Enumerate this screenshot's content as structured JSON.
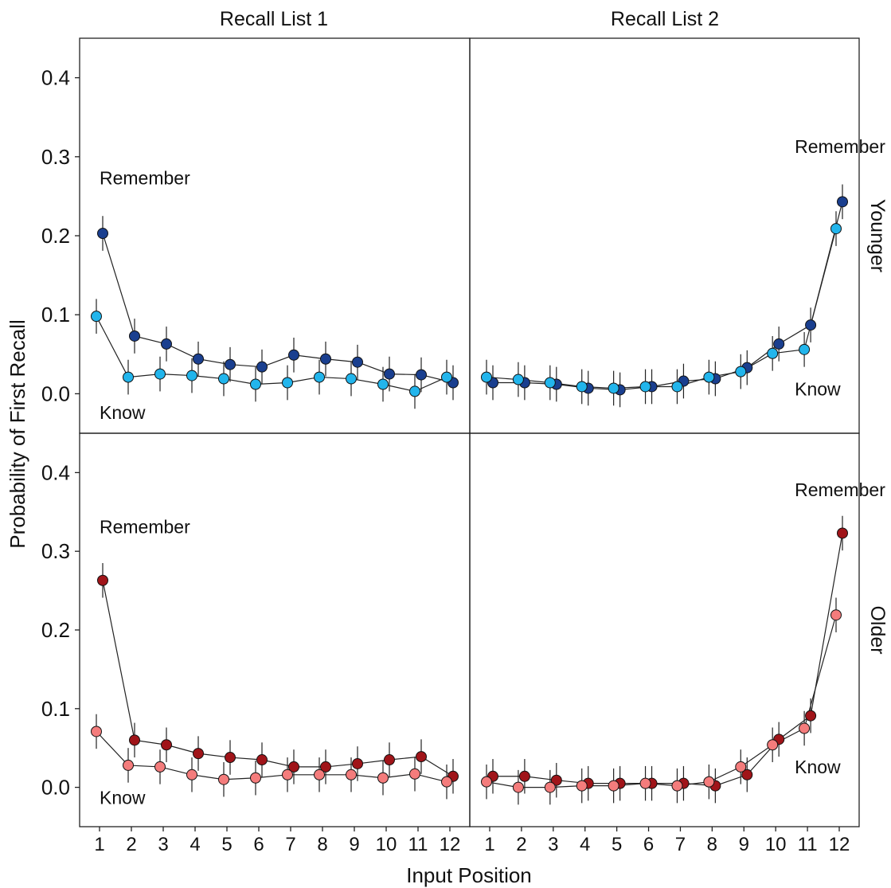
{
  "chart_data": {
    "type": "line",
    "xlabel": "Input Position",
    "ylabel": "Probability of First Recall",
    "x": [
      1,
      2,
      3,
      4,
      5,
      6,
      7,
      8,
      9,
      10,
      11,
      12
    ],
    "x_ticks": [
      "1",
      "2",
      "3",
      "4",
      "5",
      "6",
      "7",
      "8",
      "9",
      "10",
      "11",
      "12"
    ],
    "ylim": [
      -0.05,
      0.45
    ],
    "y_ticks": [
      "0.0",
      "0.1",
      "0.2",
      "0.3",
      "0.4"
    ],
    "y_tick_values": [
      0,
      0.1,
      0.2,
      0.3,
      0.4
    ],
    "grid": false,
    "column_labels": [
      "Recall List 1",
      "Recall List 2"
    ],
    "row_labels": [
      "Younger",
      "Older"
    ],
    "colors": {
      "younger_remember": "#1a3f8f",
      "younger_know": "#22b5ec",
      "older_remember": "#a01419",
      "older_know": "#f47c7c"
    },
    "panels": [
      {
        "row": "Younger",
        "column": "Recall List 1",
        "annotations": [
          {
            "text": "Remember",
            "x": 1,
            "y": 0.265
          },
          {
            "text": "Know",
            "x": 1,
            "y": -0.032
          }
        ],
        "series": [
          {
            "key": "remember",
            "color": "#1a3f8f",
            "values": [
              0.203,
              0.073,
              0.063,
              0.044,
              0.037,
              0.034,
              0.049,
              0.044,
              0.04,
              0.025,
              0.024,
              0.014
            ],
            "errors": [
              0.022,
              0.022,
              0.022,
              0.022,
              0.022,
              0.022,
              0.022,
              0.022,
              0.022,
              0.022,
              0.022,
              0.022
            ]
          },
          {
            "key": "know",
            "color": "#22b5ec",
            "values": [
              0.098,
              0.021,
              0.025,
              0.023,
              0.019,
              0.012,
              0.014,
              0.021,
              0.019,
              0.012,
              0.003,
              0.021
            ],
            "errors": [
              0.022,
              0.022,
              0.022,
              0.022,
              0.022,
              0.022,
              0.022,
              0.022,
              0.022,
              0.022,
              0.022,
              0.022
            ]
          }
        ]
      },
      {
        "row": "Younger",
        "column": "Recall List 2",
        "annotations": [
          {
            "text": "Remember",
            "x": 10.6,
            "y": 0.305
          },
          {
            "text": "Know",
            "x": 10.6,
            "y": -0.002
          }
        ],
        "series": [
          {
            "key": "remember",
            "color": "#1a3f8f",
            "values": [
              0.014,
              0.014,
              0.012,
              0.007,
              0.005,
              0.009,
              0.016,
              0.019,
              0.033,
              0.063,
              0.087,
              0.243
            ],
            "errors": [
              0.022,
              0.022,
              0.022,
              0.022,
              0.022,
              0.022,
              0.022,
              0.022,
              0.022,
              0.022,
              0.022,
              0.022
            ]
          },
          {
            "key": "know",
            "color": "#22b5ec",
            "values": [
              0.021,
              0.018,
              0.014,
              0.009,
              0.007,
              0.009,
              0.009,
              0.021,
              0.028,
              0.051,
              0.056,
              0.209
            ],
            "errors": [
              0.022,
              0.022,
              0.022,
              0.022,
              0.022,
              0.022,
              0.022,
              0.022,
              0.022,
              0.022,
              0.022,
              0.022
            ]
          }
        ]
      },
      {
        "row": "Older",
        "column": "Recall List 1",
        "annotations": [
          {
            "text": "Remember",
            "x": 1,
            "y": 0.323
          },
          {
            "text": "Know",
            "x": 1,
            "y": -0.021
          }
        ],
        "series": [
          {
            "key": "remember",
            "color": "#a01419",
            "values": [
              0.263,
              0.06,
              0.054,
              0.043,
              0.038,
              0.035,
              0.026,
              0.026,
              0.03,
              0.035,
              0.039,
              0.014
            ],
            "errors": [
              0.022,
              0.022,
              0.022,
              0.022,
              0.022,
              0.022,
              0.022,
              0.022,
              0.022,
              0.022,
              0.022,
              0.022
            ]
          },
          {
            "key": "know",
            "color": "#f47c7c",
            "values": [
              0.071,
              0.028,
              0.026,
              0.016,
              0.01,
              0.012,
              0.016,
              0.016,
              0.016,
              0.012,
              0.017,
              0.007
            ],
            "errors": [
              0.022,
              0.022,
              0.022,
              0.022,
              0.022,
              0.022,
              0.022,
              0.022,
              0.022,
              0.022,
              0.022,
              0.022
            ]
          }
        ]
      },
      {
        "row": "Older",
        "column": "Recall List 2",
        "annotations": [
          {
            "text": "Remember",
            "x": 10.6,
            "y": 0.37
          },
          {
            "text": "Know",
            "x": 10.6,
            "y": 0.018
          }
        ],
        "series": [
          {
            "key": "remember",
            "color": "#a01419",
            "values": [
              0.014,
              0.014,
              0.009,
              0.005,
              0.005,
              0.005,
              0.005,
              0.002,
              0.016,
              0.061,
              0.091,
              0.323
            ],
            "errors": [
              0.022,
              0.022,
              0.022,
              0.022,
              0.022,
              0.022,
              0.022,
              0.022,
              0.022,
              0.022,
              0.022,
              0.022
            ]
          },
          {
            "key": "know",
            "color": "#f47c7c",
            "values": [
              0.007,
              0.0,
              0.0,
              0.002,
              0.002,
              0.005,
              0.002,
              0.007,
              0.026,
              0.054,
              0.075,
              0.219
            ],
            "errors": [
              0.022,
              0.022,
              0.022,
              0.022,
              0.022,
              0.022,
              0.022,
              0.022,
              0.022,
              0.022,
              0.022,
              0.022
            ]
          }
        ]
      }
    ]
  }
}
